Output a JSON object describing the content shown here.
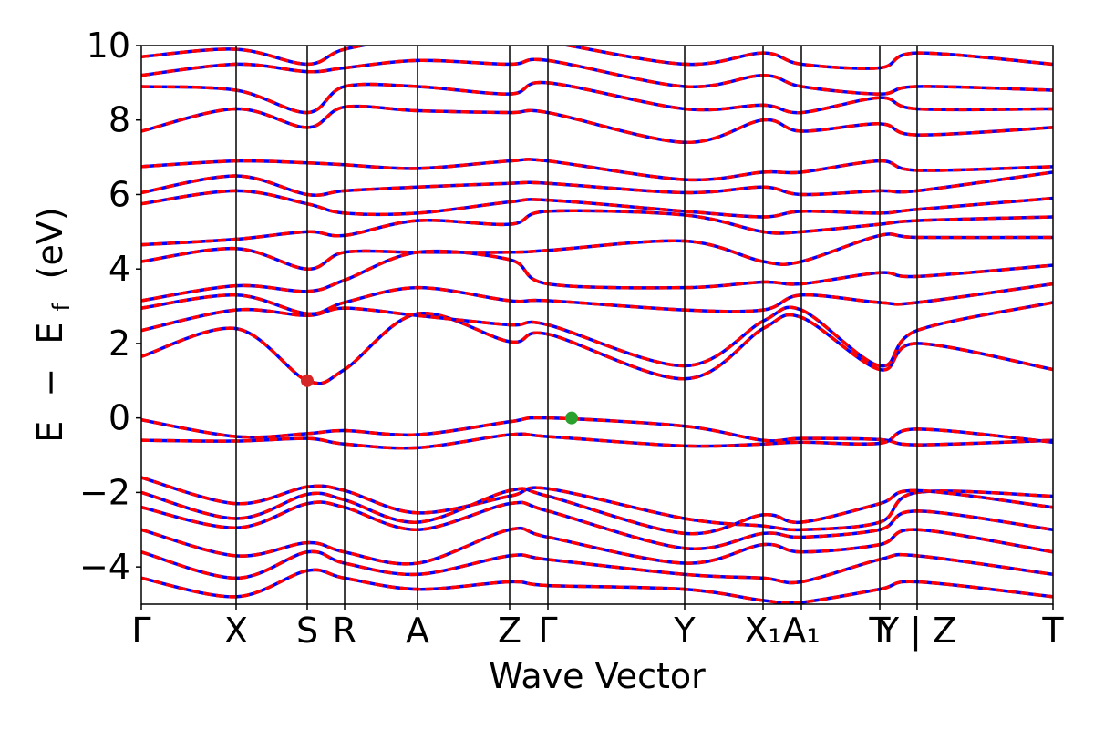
{
  "chart_data": {
    "type": "line",
    "title": "",
    "xlabel": "Wave Vector",
    "ylabel_parts": {
      "e": "E",
      "minus": "−",
      "e2": "E",
      "sub": "f",
      "unit": "(eV)"
    },
    "ylim": [
      -5,
      10
    ],
    "y_ticks": [
      {
        "value": -4,
        "label": "−4"
      },
      {
        "value": -2,
        "label": "−2"
      },
      {
        "value": 0,
        "label": "0"
      },
      {
        "value": 2,
        "label": "2"
      },
      {
        "value": 4,
        "label": "4"
      },
      {
        "value": 6,
        "label": "6"
      },
      {
        "value": 8,
        "label": "8"
      },
      {
        "value": 10,
        "label": "10"
      }
    ],
    "k_points": [
      {
        "label": "Γ",
        "x": 0.0
      },
      {
        "label": "X",
        "x": 0.104
      },
      {
        "label": "S",
        "x": 0.182
      },
      {
        "label": "R",
        "x": 0.223
      },
      {
        "label": "A",
        "x": 0.303
      },
      {
        "label": "Z",
        "x": 0.404
      },
      {
        "label": "Γ",
        "x": 0.446
      },
      {
        "label": "Y",
        "x": 0.596
      },
      {
        "label": "X₁",
        "x": 0.682
      },
      {
        "label": "A₁",
        "x": 0.724
      },
      {
        "label": "T",
        "x": 0.81
      },
      {
        "label": "Y | Z",
        "x": 0.851
      },
      {
        "label": "T",
        "x": 1.0
      }
    ],
    "highlight_points": [
      {
        "name": "CBM",
        "x": 0.182,
        "y": 1.0,
        "color": "#d62728"
      },
      {
        "name": "VBM",
        "x": 0.472,
        "y": 0.0,
        "color": "#2ca02c"
      }
    ],
    "line_colors": {
      "primary": "#ff0000",
      "secondary": "#0000ff"
    },
    "series": [
      {
        "y": [
          -0.05,
          -0.5,
          -0.42,
          -0.34,
          -0.45,
          -0.1,
          0.0,
          -0.22,
          -0.6,
          -0.55,
          -0.58,
          -0.72,
          -0.6
        ]
      },
      {
        "y": [
          -0.6,
          -0.62,
          -0.55,
          -0.7,
          -0.8,
          -0.45,
          -0.5,
          -0.75,
          -0.7,
          -0.65,
          -0.68,
          -0.3,
          -0.65
        ]
      },
      {
        "y": [
          -1.6,
          -2.3,
          -1.85,
          -1.95,
          -2.55,
          -2.1,
          -1.9,
          -2.7,
          -2.9,
          -3.0,
          -2.8,
          -2.0,
          -2.1
        ]
      },
      {
        "y": [
          -2.0,
          -2.7,
          -2.05,
          -2.2,
          -2.8,
          -1.95,
          -2.1,
          -3.1,
          -2.6,
          -2.8,
          -2.3,
          -1.95,
          -2.4
        ]
      },
      {
        "y": [
          -2.4,
          -2.95,
          -2.3,
          -2.4,
          -3.0,
          -2.3,
          -2.5,
          -3.5,
          -3.1,
          -3.2,
          -3.0,
          -2.5,
          -3.0
        ]
      },
      {
        "y": [
          -3.0,
          -3.7,
          -3.35,
          -3.6,
          -3.9,
          -3.0,
          -3.2,
          -3.9,
          -3.4,
          -3.6,
          -3.4,
          -3.0,
          -3.6
        ]
      },
      {
        "y": [
          -3.6,
          -4.3,
          -3.6,
          -3.9,
          -4.2,
          -3.7,
          -3.8,
          -4.2,
          -4.3,
          -4.4,
          -3.8,
          -3.7,
          -4.2
        ]
      },
      {
        "y": [
          -4.3,
          -4.8,
          -4.1,
          -4.3,
          -4.6,
          -4.4,
          -4.5,
          -4.6,
          -4.9,
          -4.95,
          -4.6,
          -4.4,
          -4.8
        ]
      },
      {
        "y": [
          1.65,
          2.4,
          1.0,
          1.3,
          2.8,
          2.05,
          2.25,
          1.05,
          2.4,
          2.7,
          1.3,
          2.0,
          1.3
        ]
      },
      {
        "y": [
          2.35,
          2.9,
          2.75,
          2.95,
          2.75,
          2.5,
          2.5,
          1.4,
          2.6,
          2.9,
          1.4,
          2.35,
          3.1
        ]
      },
      {
        "y": [
          2.95,
          3.3,
          2.8,
          3.1,
          3.5,
          3.15,
          3.15,
          2.9,
          2.9,
          3.3,
          3.1,
          3.1,
          3.6
        ]
      },
      {
        "y": [
          3.15,
          3.55,
          3.4,
          3.7,
          4.45,
          4.25,
          3.6,
          3.5,
          3.65,
          3.6,
          3.9,
          3.8,
          4.1
        ]
      },
      {
        "y": [
          4.2,
          4.55,
          4.0,
          4.45,
          4.45,
          4.45,
          4.5,
          4.75,
          4.2,
          4.2,
          4.9,
          4.85,
          4.85
        ]
      },
      {
        "y": [
          4.65,
          4.8,
          5.0,
          4.9,
          5.3,
          5.2,
          5.55,
          5.45,
          5.0,
          5.0,
          5.2,
          5.3,
          5.4
        ]
      },
      {
        "y": [
          5.75,
          6.1,
          5.75,
          5.5,
          5.5,
          5.8,
          5.85,
          5.55,
          5.4,
          5.55,
          5.5,
          5.6,
          5.9
        ]
      },
      {
        "y": [
          6.05,
          6.5,
          6.0,
          6.1,
          6.2,
          6.3,
          6.3,
          6.05,
          6.2,
          6.0,
          6.1,
          6.1,
          6.6
        ]
      },
      {
        "y": [
          6.75,
          6.9,
          6.85,
          6.8,
          6.7,
          6.9,
          6.9,
          6.4,
          6.6,
          6.6,
          6.9,
          6.65,
          6.75
        ]
      },
      {
        "y": [
          7.7,
          8.3,
          7.8,
          8.35,
          8.25,
          8.2,
          8.2,
          7.4,
          8.0,
          7.7,
          7.9,
          7.6,
          7.8
        ]
      },
      {
        "y": [
          8.9,
          8.8,
          8.2,
          8.9,
          8.9,
          8.7,
          9.0,
          8.3,
          8.4,
          8.2,
          8.6,
          8.3,
          8.3
        ]
      },
      {
        "y": [
          9.2,
          9.5,
          9.3,
          9.4,
          9.6,
          9.5,
          9.6,
          8.9,
          9.2,
          8.9,
          8.7,
          8.9,
          8.8
        ]
      },
      {
        "y": [
          9.7,
          9.9,
          9.5,
          9.9,
          10.2,
          10.2,
          10.1,
          9.5,
          9.8,
          9.5,
          9.4,
          9.8,
          9.5
        ]
      }
    ]
  }
}
